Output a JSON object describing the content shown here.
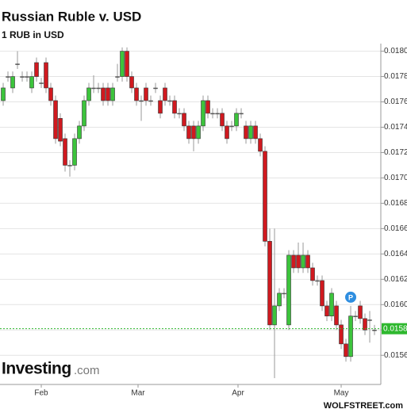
{
  "chart_data": {
    "type": "candlestick",
    "title": "Russian Ruble v. USD",
    "subtitle": "1 RUB in USD",
    "source_logo": "Investing",
    "source_logo_suffix": ".com",
    "credit": "WOLFSTREET.com",
    "marker": "P",
    "up_color": "#3cc43c",
    "down_color": "#d0191f",
    "grid": true,
    "x": [
      0,
      1,
      2,
      3,
      4,
      5,
      6,
      7,
      8,
      9,
      10,
      11,
      12,
      13,
      14,
      15,
      16,
      17,
      18,
      19,
      20,
      21,
      22,
      23,
      24,
      25,
      26,
      27,
      28,
      29,
      30,
      31,
      32,
      33,
      34,
      35,
      36,
      37,
      38,
      39,
      40,
      41,
      42,
      43,
      44,
      45,
      46,
      47,
      48,
      49,
      50,
      51,
      52,
      53,
      54,
      55,
      56,
      57,
      58,
      59,
      60,
      61,
      62,
      63,
      64,
      65,
      66,
      67,
      68,
      69,
      70,
      71,
      72,
      73,
      74,
      75,
      76,
      77,
      78
    ],
    "open": [
      0.01761,
      0.0178,
      0.01771,
      0.0179,
      0.0178,
      0.0178,
      0.01771,
      0.01791,
      0.01775,
      0.01791,
      0.01771,
      0.01761,
      0.01747,
      0.01731,
      0.0171,
      0.0171,
      0.01731,
      0.01741,
      0.01761,
      0.01771,
      0.01771,
      0.01771,
      0.01771,
      0.01761,
      0.0178,
      0.0178,
      0.018,
      0.0178,
      0.01771,
      0.01761,
      0.01771,
      0.01761,
      0.01771,
      0.01761,
      0.01771,
      0.01761,
      0.01761,
      0.01751,
      0.01751,
      0.01741,
      0.01741,
      0.01731,
      0.01741,
      0.01761,
      0.01751,
      0.01751,
      0.01751,
      0.01741,
      0.01741,
      0.01741,
      0.01751,
      0.01741,
      0.01731,
      0.01741,
      0.01731,
      0.01721,
      0.0165,
      0.01584,
      0.01599,
      0.01609,
      0.01584,
      0.01639,
      0.01639,
      0.01629,
      0.01639,
      0.01629,
      0.01619,
      0.01619,
      0.01599,
      0.01591,
      0.01599,
      0.01584,
      0.01569,
      0.01559,
      0.01591,
      0.01599,
      0.01589,
      0.01588,
      0.0158
    ],
    "high": [
      0.01775,
      0.01784,
      0.01784,
      0.018,
      0.01784,
      0.01784,
      0.01784,
      0.01795,
      0.01779,
      0.01795,
      0.01775,
      0.01765,
      0.01751,
      0.01735,
      0.01714,
      0.01735,
      0.01745,
      0.01765,
      0.01775,
      0.01781,
      0.01775,
      0.01775,
      0.01775,
      0.01775,
      0.0179,
      0.01803,
      0.01803,
      0.01784,
      0.01775,
      0.01765,
      0.01775,
      0.01765,
      0.01775,
      0.01765,
      0.01775,
      0.01765,
      0.01765,
      0.01755,
      0.01755,
      0.01745,
      0.01745,
      0.01745,
      0.01765,
      0.01765,
      0.01755,
      0.01755,
      0.01755,
      0.01745,
      0.01745,
      0.01755,
      0.01755,
      0.01745,
      0.01745,
      0.01745,
      0.01735,
      0.01725,
      0.0166,
      0.0166,
      0.01613,
      0.01613,
      0.01643,
      0.01643,
      0.01649,
      0.01649,
      0.01643,
      0.01633,
      0.01623,
      0.01623,
      0.01603,
      0.01613,
      0.01603,
      0.01588,
      0.01573,
      0.01599,
      0.01595,
      0.01603,
      0.01593,
      0.01595,
      0.01584
    ],
    "low": [
      0.01757,
      0.01776,
      0.01767,
      0.01786,
      0.01776,
      0.01776,
      0.01767,
      0.01776,
      0.01771,
      0.01767,
      0.01757,
      0.01727,
      0.01725,
      0.01705,
      0.01701,
      0.01706,
      0.01727,
      0.01737,
      0.01757,
      0.01767,
      0.01767,
      0.01757,
      0.01757,
      0.01757,
      0.01776,
      0.01776,
      0.01776,
      0.01767,
      0.01757,
      0.01745,
      0.01757,
      0.01757,
      0.01767,
      0.01747,
      0.01757,
      0.01757,
      0.01747,
      0.01747,
      0.01737,
      0.01727,
      0.01721,
      0.01727,
      0.01737,
      0.01747,
      0.01747,
      0.01747,
      0.01737,
      0.01727,
      0.01737,
      0.01737,
      0.01747,
      0.01727,
      0.01727,
      0.01727,
      0.01717,
      0.01646,
      0.0158,
      0.01542,
      0.01595,
      0.01605,
      0.0158,
      0.01625,
      0.01625,
      0.01625,
      0.01625,
      0.01615,
      0.01615,
      0.01595,
      0.01587,
      0.01587,
      0.0158,
      0.01565,
      0.01555,
      0.01555,
      0.01587,
      0.01585,
      0.01576,
      0.0157,
      0.01576
    ],
    "close": [
      0.01771,
      0.0178,
      0.0178,
      0.0179,
      0.0178,
      0.0178,
      0.0178,
      0.0178,
      0.01775,
      0.01771,
      0.01761,
      0.01731,
      0.01729,
      0.0171,
      0.0171,
      0.01731,
      0.01741,
      0.01761,
      0.01771,
      0.01771,
      0.01771,
      0.01761,
      0.01761,
      0.01771,
      0.0178,
      0.018,
      0.0178,
      0.01771,
      0.01761,
      0.01761,
      0.01761,
      0.01761,
      0.01771,
      0.01751,
      0.01761,
      0.01761,
      0.01751,
      0.01751,
      0.01741,
      0.01731,
      0.01731,
      0.01741,
      0.01761,
      0.01751,
      0.01751,
      0.01751,
      0.01741,
      0.01731,
      0.01741,
      0.01751,
      0.01751,
      0.01731,
      0.01741,
      0.01731,
      0.01721,
      0.0165,
      0.01584,
      0.01599,
      0.01609,
      0.01609,
      0.01639,
      0.01629,
      0.01629,
      0.01639,
      0.01629,
      0.01619,
      0.01619,
      0.01599,
      0.01591,
      0.01609,
      0.01584,
      0.01569,
      0.01559,
      0.01591,
      0.01591,
      0.01589,
      0.0158,
      0.01588,
      0.0158
    ],
    "xlim": [
      -0.67,
      79.33
    ],
    "xticks": [
      {
        "value": 8,
        "label": "Feb"
      },
      {
        "value": 28.33,
        "label": "Mar"
      },
      {
        "value": 49.33,
        "label": "Apr"
      },
      {
        "value": 71,
        "label": "May"
      }
    ],
    "ylim": [
      0.01537,
      0.01806
    ],
    "yticks": [
      {
        "value": 0.018,
        "label": "0.0180"
      },
      {
        "value": 0.0178,
        "label": "0.0178"
      },
      {
        "value": 0.0176,
        "label": "0.0176"
      },
      {
        "value": 0.0174,
        "label": "0.0174"
      },
      {
        "value": 0.0172,
        "label": "0.0172"
      },
      {
        "value": 0.017,
        "label": "0.0170"
      },
      {
        "value": 0.0168,
        "label": "0.0168"
      },
      {
        "value": 0.0166,
        "label": "0.0166"
      },
      {
        "value": 0.0164,
        "label": "0.0164"
      },
      {
        "value": 0.0162,
        "label": "0.0162"
      },
      {
        "value": 0.016,
        "label": "0.0160"
      },
      {
        "value": 0.0158,
        "label": "0.0158"
      },
      {
        "value": 0.0156,
        "label": "0.0156"
      }
    ],
    "current_price": {
      "value": 0.01581,
      "label": "0.01581"
    },
    "current_color": "#2eb82e"
  }
}
